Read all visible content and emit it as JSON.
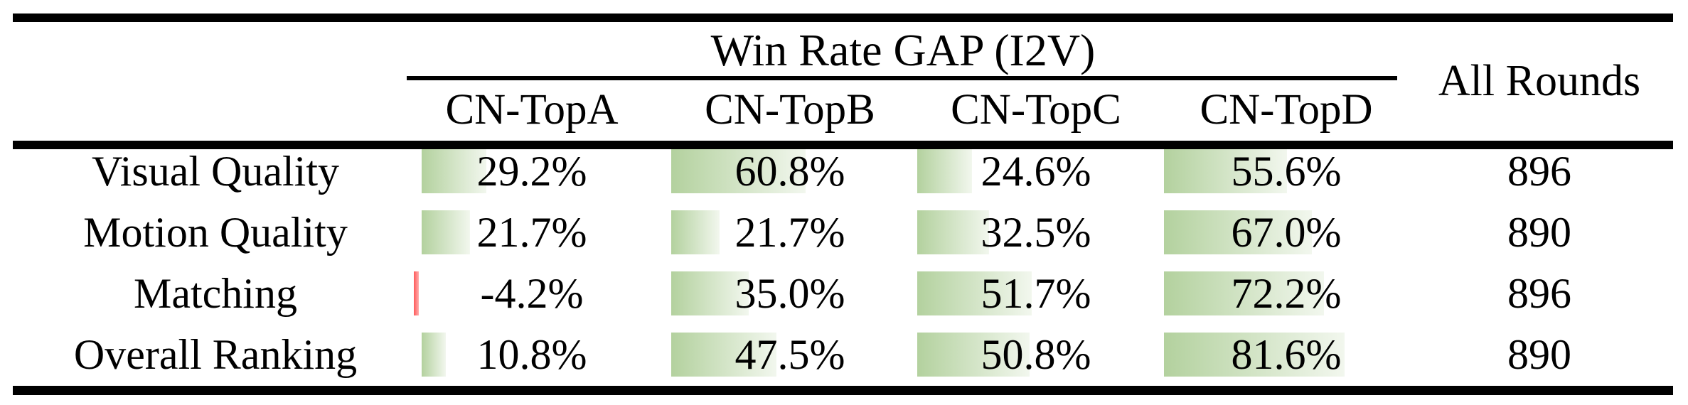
{
  "title": "Win Rate GAP (I2V)",
  "table": {
    "group_header": "Win Rate GAP (I2V)",
    "all_rounds_header": "All Rounds",
    "columns": [
      "CN-TopA",
      "CN-TopB",
      "CN-TopC",
      "CN-TopD"
    ],
    "rows": [
      {
        "label": "Visual Quality",
        "values": [
          "29.2%",
          "60.8%",
          "24.6%",
          "55.6%"
        ],
        "all_rounds": "896"
      },
      {
        "label": "Motion Quality",
        "values": [
          "21.7%",
          "21.7%",
          "32.5%",
          "67.0%"
        ],
        "all_rounds": "890"
      },
      {
        "label": "Matching",
        "values": [
          "-4.2%",
          "35.0%",
          "51.7%",
          "72.2%"
        ],
        "all_rounds": "896"
      },
      {
        "label": "Overall Ranking",
        "values": [
          "10.8%",
          "47.5%",
          "50.8%",
          "81.6%"
        ],
        "all_rounds": "890"
      }
    ]
  },
  "colors": {
    "bar_green": "#b3d19e",
    "bar_fade": "#f2f7ee",
    "negative_red": "#ff5a5a",
    "rule_black": "#000000",
    "text_black": "#000000"
  },
  "chart_data": {
    "type": "table",
    "title": "Win Rate GAP (I2V)",
    "columns": [
      "CN-TopA",
      "CN-TopB",
      "CN-TopC",
      "CN-TopD",
      "All Rounds"
    ],
    "row_labels": [
      "Visual Quality",
      "Motion Quality",
      "Matching",
      "Overall Ranking"
    ],
    "series": [
      {
        "name": "CN-TopA",
        "values": [
          29.2,
          21.7,
          -4.2,
          10.8
        ]
      },
      {
        "name": "CN-TopB",
        "values": [
          60.8,
          21.7,
          35.0,
          47.5
        ]
      },
      {
        "name": "CN-TopC",
        "values": [
          24.6,
          32.5,
          51.7,
          50.8
        ]
      },
      {
        "name": "CN-TopD",
        "values": [
          55.6,
          67.0,
          72.2,
          81.6
        ]
      }
    ],
    "all_rounds": [
      896,
      890,
      896,
      890
    ],
    "value_unit": "percent",
    "bar_style": "green gradient data bars proportional to value; negative value drawn as thin red bar",
    "bar_value_range_implied": [
      -4.2,
      81.6
    ]
  }
}
